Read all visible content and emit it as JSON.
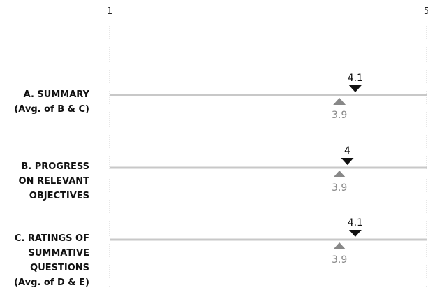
{
  "chart_data": {
    "type": "scatter",
    "xlim": [
      1,
      5
    ],
    "x_tick_labels": [
      "1",
      "5"
    ],
    "grid": false,
    "categories": [
      [
        "A. SUMMARY",
        "(Avg. of B & C)"
      ],
      [
        "B. PROGRESS",
        "ON RELEVANT",
        "OBJECTIVES"
      ],
      [
        "C. RATINGS OF",
        "SUMMATIVE",
        "QUESTIONS",
        "(Avg. of D & E)"
      ]
    ],
    "series": [
      {
        "values": [
          4.1,
          4,
          4.1
        ],
        "labels": [
          "4.1",
          "4",
          "4.1"
        ],
        "marker": "triangle-down",
        "color": "#111111"
      },
      {
        "values": [
          3.9,
          3.9,
          3.9
        ],
        "labels": [
          "3.9",
          "3.9",
          "3.9"
        ],
        "marker": "triangle-up",
        "color": "#888888"
      }
    ]
  },
  "colors": {
    "track": "#c8c8c8",
    "gridline": "#cccccc",
    "tick_text": "#222222"
  }
}
